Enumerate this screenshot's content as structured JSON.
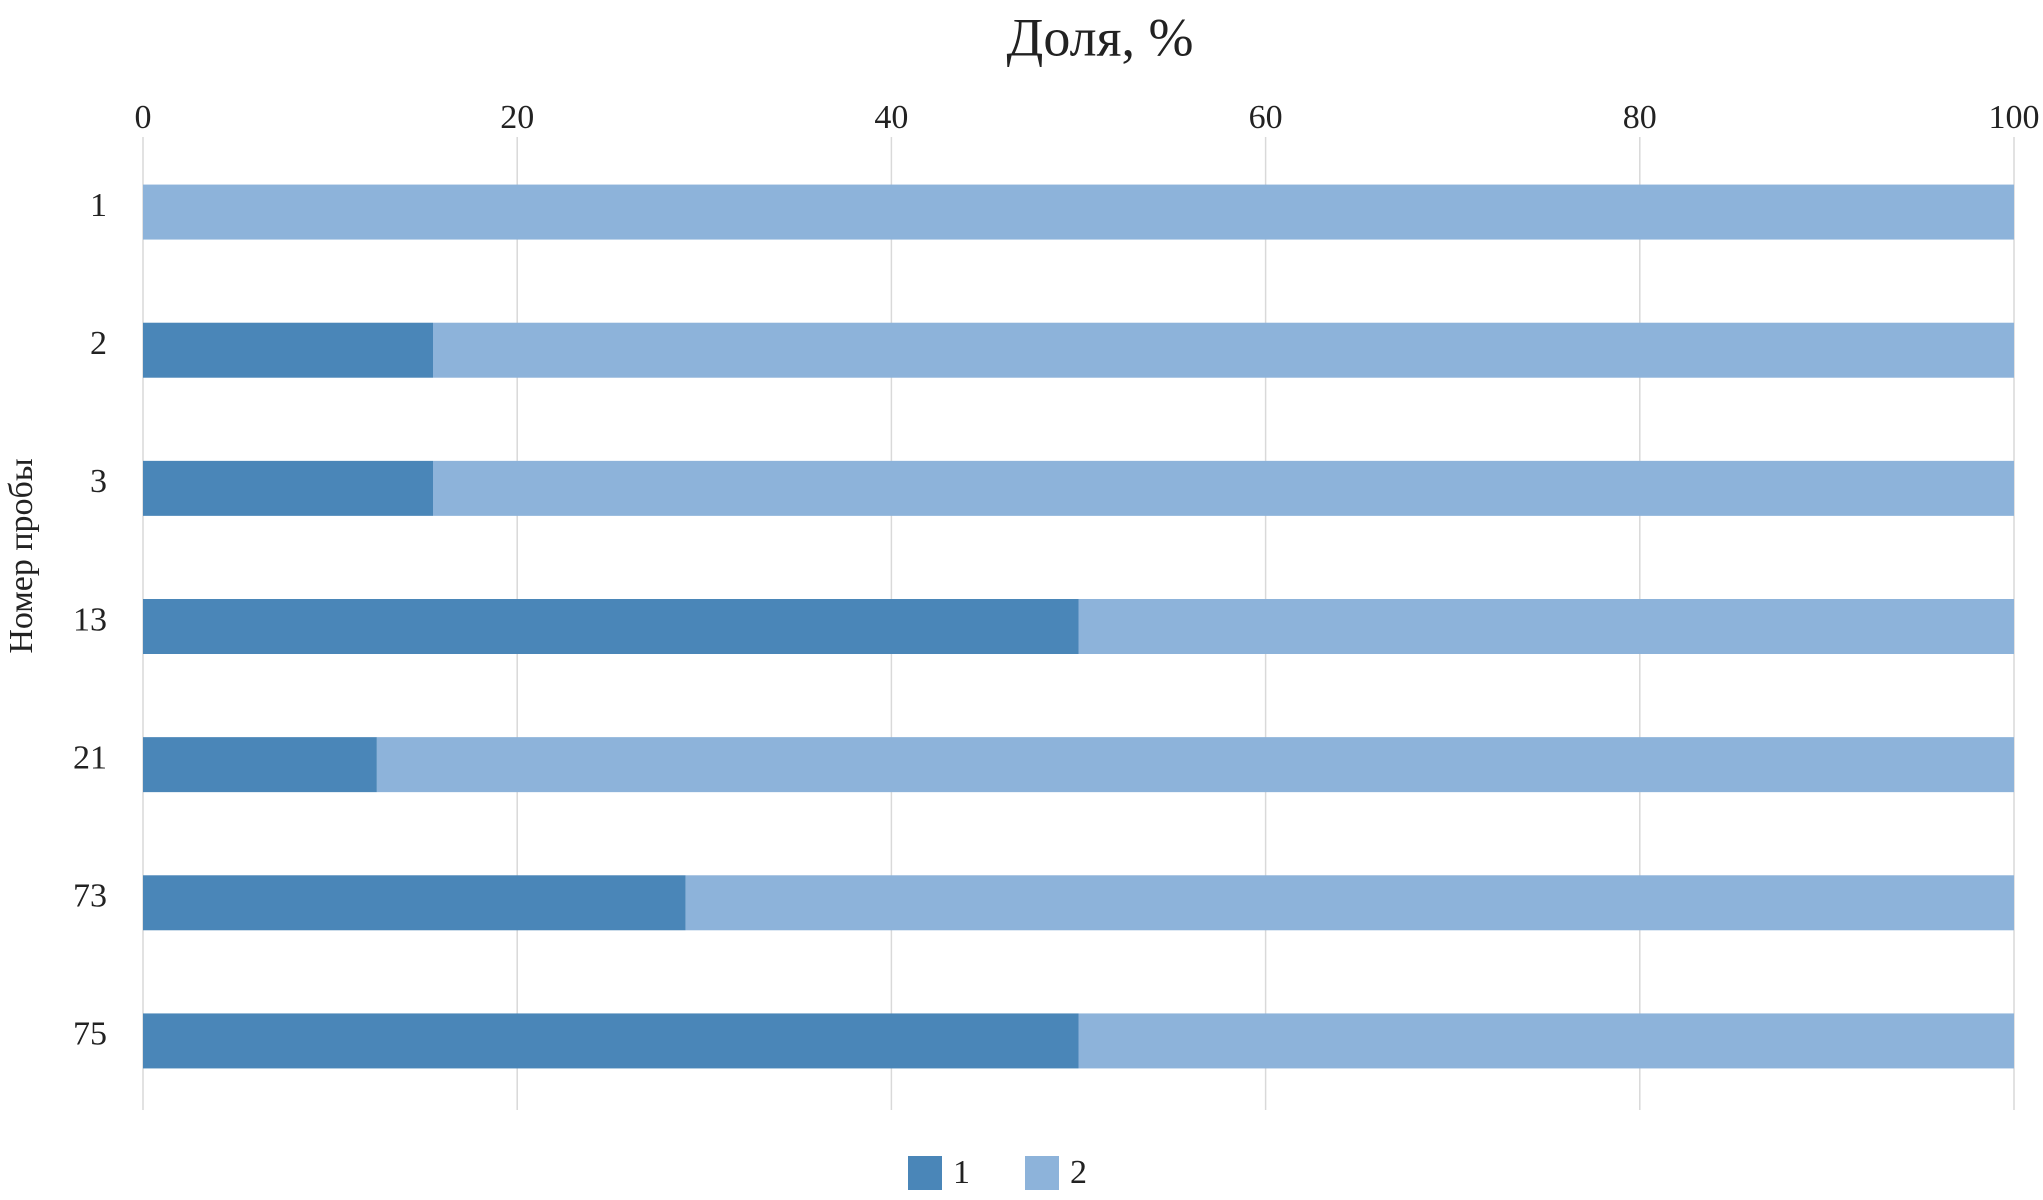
{
  "chart_data": {
    "type": "stacked-bar-horizontal",
    "title": "Доля, %",
    "y_label": "Номер пробы",
    "categories": [
      "1",
      "2",
      "3",
      "13",
      "21",
      "73",
      "75"
    ],
    "series": [
      {
        "name": "1",
        "color": "#4a86b8",
        "values": [
          0,
          15.5,
          15.5,
          50,
          12.5,
          29,
          50
        ]
      },
      {
        "name": "2",
        "color": "#8db3da",
        "values": [
          100,
          84.5,
          84.5,
          50,
          87.5,
          71,
          50
        ]
      }
    ],
    "xlim": [
      0,
      100
    ],
    "xticks": [
      0,
      20,
      40,
      60,
      80,
      100
    ],
    "grid": true,
    "legend": "bottom"
  }
}
